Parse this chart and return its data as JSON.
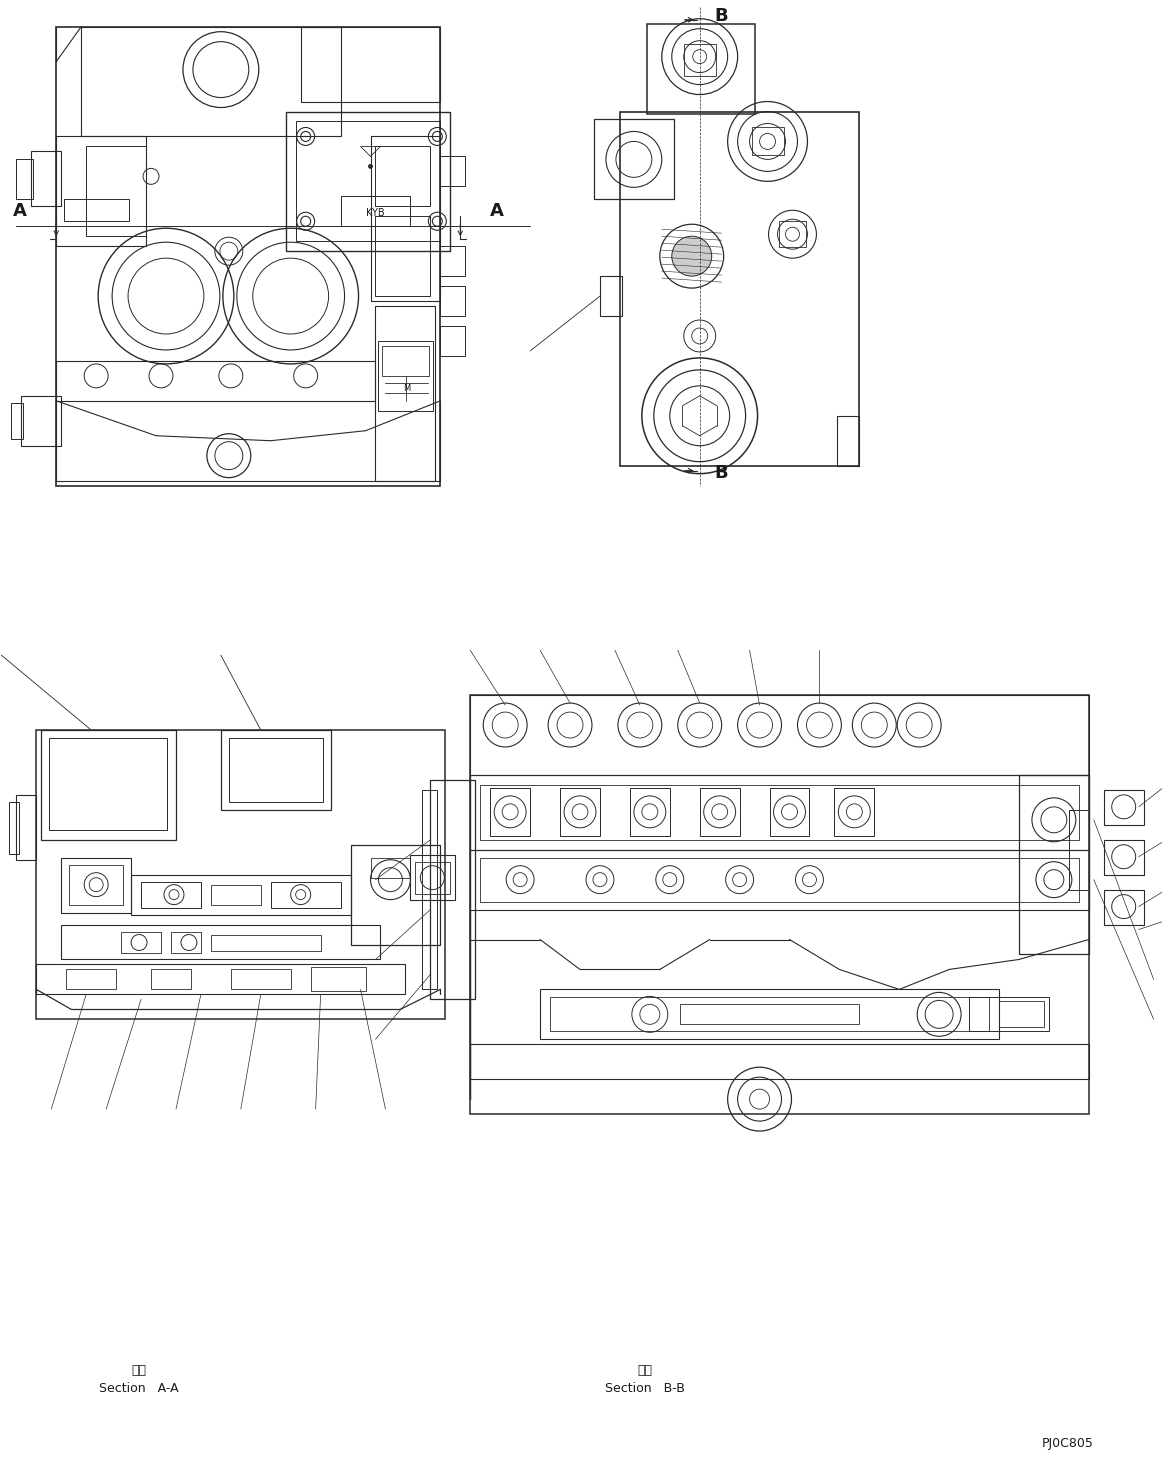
{
  "background_color": "#ffffff",
  "figure_width": 11.63,
  "figure_height": 14.81,
  "dpi": 100,
  "label_A_left": "A",
  "label_A_right": "A",
  "label_B_top": "B",
  "label_B_bottom": "B",
  "section_aa_kanji": "断面",
  "section_aa_text": "Section   A-A",
  "section_bb_kanji": "断面",
  "section_bb_text": "Section   B-B",
  "part_number": "PJ0C805",
  "line_color": "#2a2a2a",
  "text_color": "#1a1a1a",
  "lw_main": 1.0,
  "lw_detail": 0.6,
  "lw_thin": 0.4
}
